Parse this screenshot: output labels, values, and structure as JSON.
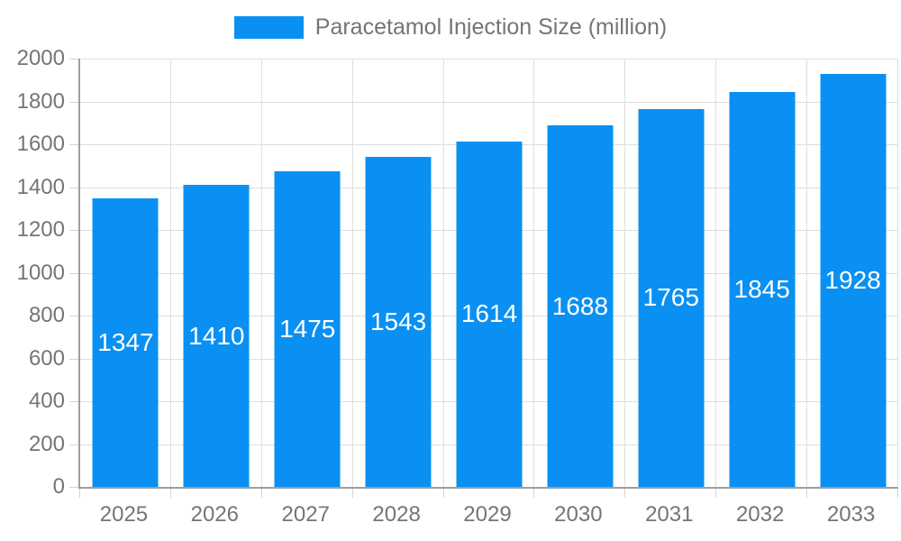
{
  "legend": {
    "label": "Paracetamol Injection Size (million)"
  },
  "chart_data": {
    "type": "bar",
    "title": "Paracetamol Injection Size (million)",
    "categories": [
      "2025",
      "2026",
      "2027",
      "2028",
      "2029",
      "2030",
      "2031",
      "2032",
      "2033"
    ],
    "series": [
      {
        "name": "Paracetamol Injection Size (million)",
        "values": [
          1347,
          1410,
          1475,
          1543,
          1614,
          1688,
          1765,
          1845,
          1928
        ],
        "color": "#0A90F2",
        "value_label_color": "#ffffff"
      }
    ],
    "xlabel": "",
    "ylabel": "",
    "ylim": [
      0,
      2000
    ],
    "yticks": [
      0,
      200,
      400,
      600,
      800,
      1000,
      1200,
      1400,
      1600,
      1800,
      2000
    ],
    "grid": true,
    "legend_position": "top-center",
    "bar_value_labels": "centered-inside-bars",
    "colors": {
      "grid": "#dedede",
      "axis": "#9e9e9e",
      "tick": "#d4d4d4",
      "axis_label_text": "#757575",
      "legend_text": "#757575"
    }
  }
}
